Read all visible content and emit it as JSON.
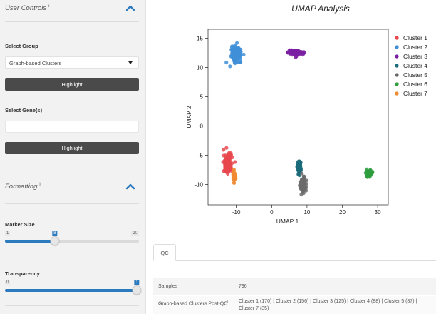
{
  "sidebar": {
    "user_controls": {
      "title": "User Controls",
      "info_mark": "i"
    },
    "select_group": {
      "label": "Select Group",
      "value": "Graph-based Clusters"
    },
    "highlight_1": "Highlight",
    "select_genes": {
      "label": "Select Gene(s)",
      "value": ""
    },
    "highlight_2": "Highlight",
    "formatting": {
      "title": "Formatting",
      "info_mark": "i"
    },
    "marker_size": {
      "label": "Marker Size",
      "min": "1",
      "max": "20",
      "value": "8",
      "fraction": 0.368
    },
    "transparency": {
      "label": "Transparency",
      "min": "0",
      "max": "1",
      "value": "1",
      "fraction": 1.0
    }
  },
  "main": {
    "tab_qc": "QC",
    "table": [
      {
        "key": "Samples",
        "value": "796"
      },
      {
        "key": "Graph-based Clusters Post-QC",
        "info_mark": "i",
        "value_line1": "Cluster 1 (170) | Cluster 2 (156) | Cluster 3 (125) | Cluster 4 (88) | Cluster 5 (87) |",
        "value_line2": "Cluster 7 (35)"
      }
    ]
  },
  "chart_data": {
    "type": "scatter",
    "title": "UMAP Analysis",
    "xlabel": "UMAP 1",
    "ylabel": "UMAP 2",
    "xlim": [
      -18,
      33
    ],
    "ylim": [
      -13.5,
      16.5
    ],
    "xticks": [
      -10,
      0,
      10,
      20,
      30
    ],
    "yticks": [
      -10,
      -5,
      0,
      5,
      10,
      15
    ],
    "grid": false,
    "legend_position": "right",
    "series": [
      {
        "name": "Cluster 1",
        "color": "#e8474d",
        "center": [
          -12.5,
          -6.5
        ],
        "spread": [
          1.0,
          1.5
        ],
        "count": 170
      },
      {
        "name": "Cluster 2",
        "color": "#3f8fd8",
        "center": [
          -10.0,
          12.3
        ],
        "spread": [
          1.2,
          1.1
        ],
        "count": 156
      },
      {
        "name": "Cluster 3",
        "color": "#7a1fa2",
        "center": [
          7.0,
          12.5
        ],
        "spread": [
          1.9,
          0.35
        ],
        "count": 125
      },
      {
        "name": "Cluster 4",
        "color": "#1b6b7a",
        "center": [
          7.8,
          -7.0
        ],
        "spread": [
          0.45,
          1.1
        ],
        "count": 88
      },
      {
        "name": "Cluster 5",
        "color": "#6b6b6b",
        "center": [
          8.9,
          -10.0
        ],
        "spread": [
          0.7,
          1.2
        ],
        "count": 87
      },
      {
        "name": "Cluster 6",
        "color": "#2e9e3e",
        "center": [
          27.5,
          -8.0
        ],
        "spread": [
          0.7,
          0.6
        ],
        "count": 40
      },
      {
        "name": "Cluster 7",
        "color": "#f08a30",
        "center": [
          -10.6,
          -8.7
        ],
        "spread": [
          0.35,
          0.9
        ],
        "count": 35
      }
    ]
  }
}
